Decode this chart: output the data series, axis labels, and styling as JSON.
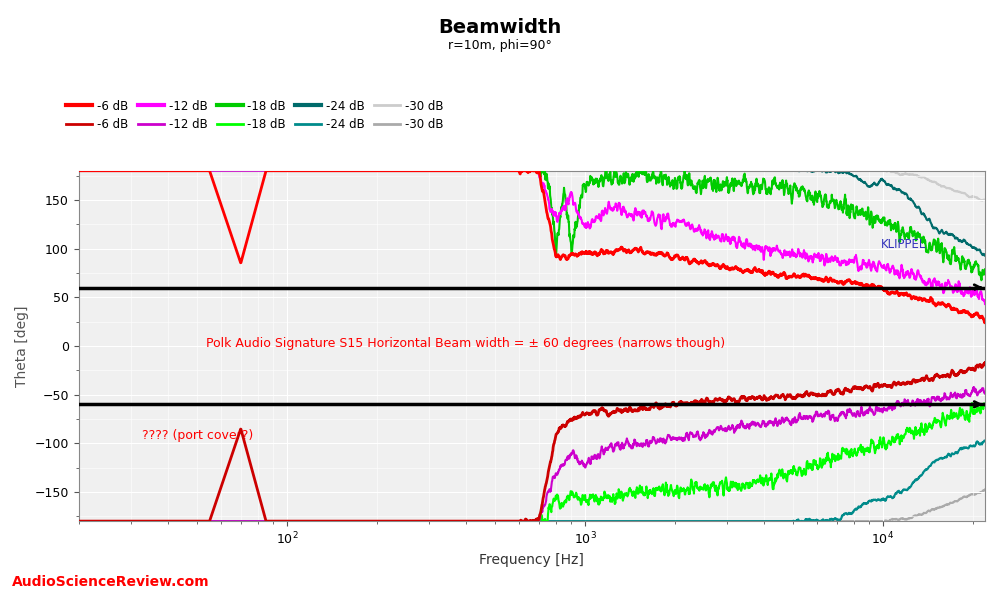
{
  "title": "Beamwidth",
  "subtitle": "r=10m, phi=90°",
  "xlabel": "Frequency [Hz]",
  "ylabel": "Theta [deg]",
  "watermark": "KLIPPEL",
  "asr_text": "AudioScienceReview.com",
  "annotation1": "Polk Audio Signature S15 Horizontal Beam width = ± 60 degrees (narrows though)",
  "annotation2": "???? (port cover?)",
  "xlim_lo": 20,
  "xlim_hi": 22000,
  "ylim_lo": -180,
  "ylim_hi": 180,
  "hline1": 60,
  "hline2": -60,
  "bg_color": "#f0f0f0",
  "grid_color": "#ffffff"
}
